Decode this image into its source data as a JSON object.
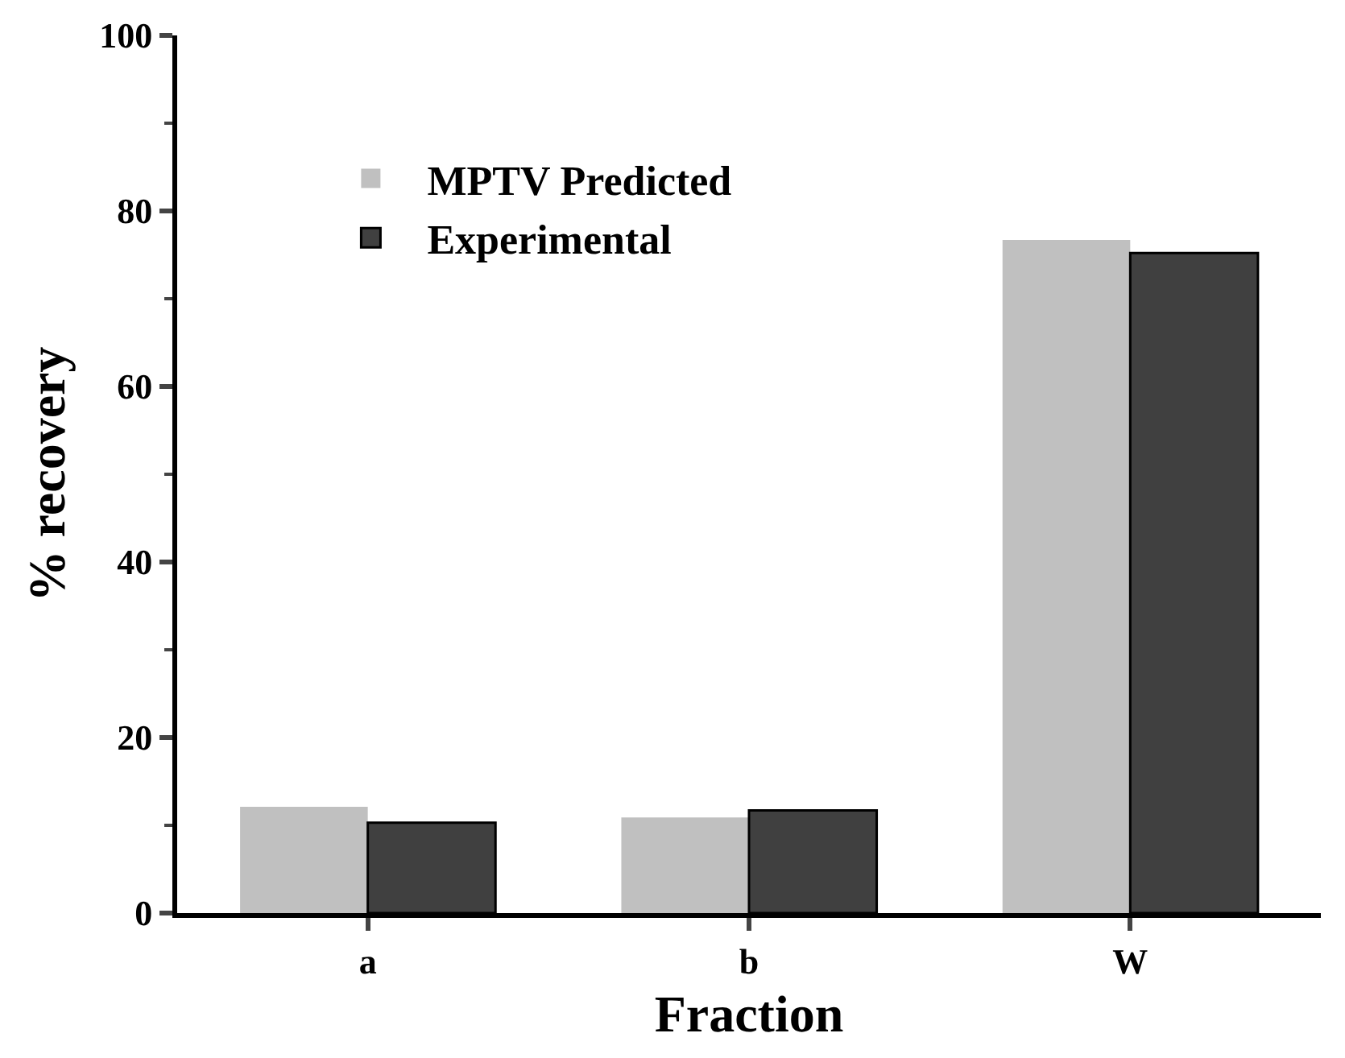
{
  "chart_data": {
    "type": "bar",
    "xlabel": "Fraction",
    "ylabel": "% recovery",
    "categories": [
      "a",
      "b",
      "W"
    ],
    "series": [
      {
        "name": "MPTV Predicted",
        "color": "#c0c0c0",
        "values": [
          12.1,
          10.9,
          76.7
        ]
      },
      {
        "name": "Experimental",
        "color": "#404040",
        "values": [
          10.3,
          11.7,
          75.2
        ]
      }
    ],
    "ylim": [
      0,
      100
    ],
    "yticks": [
      0,
      20,
      40,
      60,
      80,
      100
    ],
    "grid": false,
    "legend": "top left"
  }
}
